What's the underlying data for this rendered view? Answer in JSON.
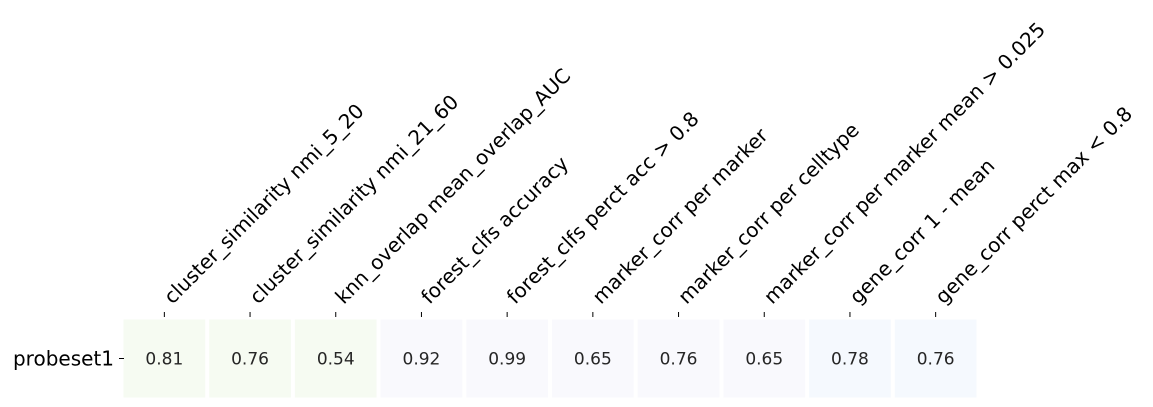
{
  "chart_data": {
    "type": "heatmap",
    "rows": [
      "probeset1"
    ],
    "columns": [
      "cluster_similarity nmi_5_20",
      "cluster_similarity nmi_21_60",
      "knn_overlap mean_overlap_AUC",
      "forest_clfs accuracy",
      "forest_clfs perct acc > 0.8",
      "marker_corr per marker",
      "marker_corr per celltype",
      "marker_corr per marker mean > 0.025",
      "gene_corr 1 - mean",
      "gene_corr perct max < 0.8"
    ],
    "values": [
      [
        0.81,
        0.76,
        0.54,
        0.92,
        0.99,
        0.65,
        0.76,
        0.65,
        0.78,
        0.76
      ]
    ],
    "cell_labels": [
      [
        "0.81",
        "0.76",
        "0.54",
        "0.92",
        "0.99",
        "0.65",
        "0.76",
        "0.65",
        "0.78",
        "0.76"
      ]
    ],
    "cell_colors": [
      [
        "#f6fbf2",
        "#f6fbf2",
        "#f6fbf2",
        "#f9f9fd",
        "#f9f9fd",
        "#f9f9fd",
        "#f9f9fd",
        "#f9f9fd",
        "#f5f9fe",
        "#f5f9fe"
      ]
    ],
    "grid": false,
    "legend": "none"
  }
}
